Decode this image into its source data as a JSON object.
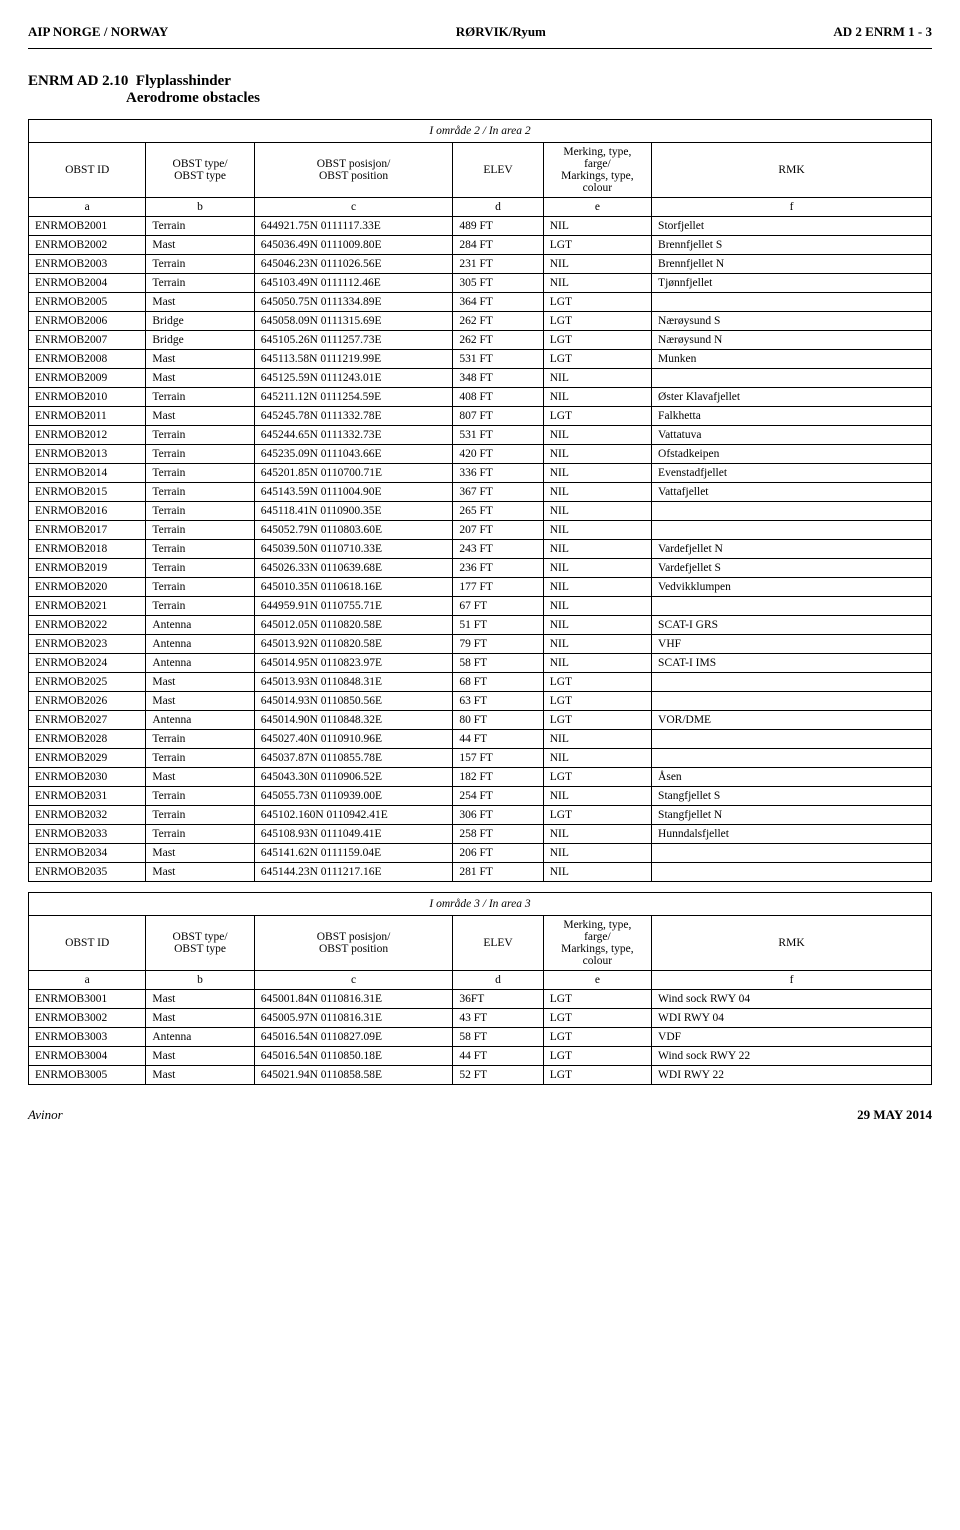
{
  "header": {
    "left": "AIP NORGE / NORWAY",
    "center": "RØRVIK/Ryum",
    "right": "AD 2 ENRM 1 - 3"
  },
  "section": {
    "code": "ENRM AD 2.10",
    "title_no": "Flyplasshinder",
    "title_en": "Aerodrome obstacles"
  },
  "columns": {
    "id": "OBST ID",
    "type1": "OBST type/",
    "type2": "OBST type",
    "pos1": "OBST posisjon/",
    "pos2": "OBST position",
    "elev": "ELEV",
    "mark1": "Merking, type, farge/",
    "mark2": "Markings, type, colour",
    "rmk": "RMK",
    "letters": [
      "a",
      "b",
      "c",
      "d",
      "e",
      "f"
    ]
  },
  "area2": {
    "caption": "I område 2 / In area 2",
    "rows": [
      {
        "id": "ENRMOB2001",
        "type": "Terrain",
        "pos": "644921.75N 0111117.33E",
        "elev": "489 FT",
        "mark": "NIL",
        "rmk": "Storfjellet"
      },
      {
        "id": "ENRMOB2002",
        "type": "Mast",
        "pos": "645036.49N 0111009.80E",
        "elev": "284 FT",
        "mark": "LGT",
        "rmk": "Brennfjellet S"
      },
      {
        "id": "ENRMOB2003",
        "type": "Terrain",
        "pos": "645046.23N 0111026.56E",
        "elev": "231 FT",
        "mark": "NIL",
        "rmk": "Brennfjellet N"
      },
      {
        "id": "ENRMOB2004",
        "type": "Terrain",
        "pos": "645103.49N 0111112.46E",
        "elev": "305 FT",
        "mark": "NIL",
        "rmk": "Tjønnfjellet"
      },
      {
        "id": "ENRMOB2005",
        "type": "Mast",
        "pos": "645050.75N 0111334.89E",
        "elev": "364 FT",
        "mark": "LGT",
        "rmk": ""
      },
      {
        "id": "ENRMOB2006",
        "type": "Bridge",
        "pos": "645058.09N 0111315.69E",
        "elev": "262 FT",
        "mark": "LGT",
        "rmk": "Nærøysund S"
      },
      {
        "id": "ENRMOB2007",
        "type": "Bridge",
        "pos": "645105.26N 0111257.73E",
        "elev": "262 FT",
        "mark": "LGT",
        "rmk": "Nærøysund N"
      },
      {
        "id": "ENRMOB2008",
        "type": "Mast",
        "pos": "645113.58N 0111219.99E",
        "elev": "531 FT",
        "mark": "LGT",
        "rmk": "Munken"
      },
      {
        "id": "ENRMOB2009",
        "type": "Mast",
        "pos": "645125.59N 0111243.01E",
        "elev": "348 FT",
        "mark": "NIL",
        "rmk": ""
      },
      {
        "id": "ENRMOB2010",
        "type": "Terrain",
        "pos": "645211.12N 0111254.59E",
        "elev": "408 FT",
        "mark": "NIL",
        "rmk": "Øster Klavafjellet"
      },
      {
        "id": "ENRMOB2011",
        "type": "Mast",
        "pos": "645245.78N 0111332.78E",
        "elev": "807 FT",
        "mark": "LGT",
        "rmk": "Falkhetta"
      },
      {
        "id": "ENRMOB2012",
        "type": "Terrain",
        "pos": "645244.65N 0111332.73E",
        "elev": "531 FT",
        "mark": "NIL",
        "rmk": "Vattatuva"
      },
      {
        "id": "ENRMOB2013",
        "type": "Terrain",
        "pos": "645235.09N 0111043.66E",
        "elev": "420 FT",
        "mark": "NIL",
        "rmk": "Ofstadkeipen"
      },
      {
        "id": "ENRMOB2014",
        "type": "Terrain",
        "pos": "645201.85N 0110700.71E",
        "elev": "336 FT",
        "mark": "NIL",
        "rmk": "Evenstadfjellet"
      },
      {
        "id": "ENRMOB2015",
        "type": "Terrain",
        "pos": "645143.59N 0111004.90E",
        "elev": "367 FT",
        "mark": "NIL",
        "rmk": "Vattafjellet"
      },
      {
        "id": "ENRMOB2016",
        "type": "Terrain",
        "pos": "645118.41N 0110900.35E",
        "elev": "265 FT",
        "mark": "NIL",
        "rmk": ""
      },
      {
        "id": "ENRMOB2017",
        "type": "Terrain",
        "pos": "645052.79N 0110803.60E",
        "elev": "207 FT",
        "mark": "NIL",
        "rmk": ""
      },
      {
        "id": "ENRMOB2018",
        "type": "Terrain",
        "pos": "645039.50N 0110710.33E",
        "elev": "243 FT",
        "mark": "NIL",
        "rmk": "Vardefjellet N"
      },
      {
        "id": "ENRMOB2019",
        "type": "Terrain",
        "pos": "645026.33N 0110639.68E",
        "elev": "236 FT",
        "mark": "NIL",
        "rmk": "Vardefjellet S"
      },
      {
        "id": "ENRMOB2020",
        "type": "Terrain",
        "pos": "645010.35N 0110618.16E",
        "elev": "177 FT",
        "mark": "NIL",
        "rmk": "Vedvikklumpen"
      },
      {
        "id": "ENRMOB2021",
        "type": "Terrain",
        "pos": "644959.91N 0110755.71E",
        "elev": "67 FT",
        "mark": "NIL",
        "rmk": ""
      },
      {
        "id": "ENRMOB2022",
        "type": "Antenna",
        "pos": "645012.05N 0110820.58E",
        "elev": "51 FT",
        "mark": "NIL",
        "rmk": "SCAT-I GRS"
      },
      {
        "id": "ENRMOB2023",
        "type": "Antenna",
        "pos": "645013.92N 0110820.58E",
        "elev": "79 FT",
        "mark": "NIL",
        "rmk": "VHF"
      },
      {
        "id": "ENRMOB2024",
        "type": "Antenna",
        "pos": "645014.95N 0110823.97E",
        "elev": "58 FT",
        "mark": "NIL",
        "rmk": "SCAT-I IMS"
      },
      {
        "id": "ENRMOB2025",
        "type": "Mast",
        "pos": "645013.93N 0110848.31E",
        "elev": "68 FT",
        "mark": "LGT",
        "rmk": ""
      },
      {
        "id": "ENRMOB2026",
        "type": "Mast",
        "pos": "645014.93N 0110850.56E",
        "elev": "63 FT",
        "mark": "LGT",
        "rmk": ""
      },
      {
        "id": "ENRMOB2027",
        "type": "Antenna",
        "pos": "645014.90N 0110848.32E",
        "elev": "80 FT",
        "mark": "LGT",
        "rmk": "VOR/DME"
      },
      {
        "id": "ENRMOB2028",
        "type": "Terrain",
        "pos": "645027.40N 0110910.96E",
        "elev": "44 FT",
        "mark": "NIL",
        "rmk": ""
      },
      {
        "id": "ENRMOB2029",
        "type": "Terrain",
        "pos": "645037.87N 0110855.78E",
        "elev": "157 FT",
        "mark": "NIL",
        "rmk": ""
      },
      {
        "id": "ENRMOB2030",
        "type": "Mast",
        "pos": "645043.30N 0110906.52E",
        "elev": "182 FT",
        "mark": "LGT",
        "rmk": "Åsen"
      },
      {
        "id": "ENRMOB2031",
        "type": "Terrain",
        "pos": "645055.73N 0110939.00E",
        "elev": "254 FT",
        "mark": "NIL",
        "rmk": "Stangfjellet S"
      },
      {
        "id": "ENRMOB2032",
        "type": "Terrain",
        "pos": "645102.160N 0110942.41E",
        "elev": "306 FT",
        "mark": "LGT",
        "rmk": "Stangfjellet N"
      },
      {
        "id": "ENRMOB2033",
        "type": "Terrain",
        "pos": "645108.93N 0111049.41E",
        "elev": "258 FT",
        "mark": "NIL",
        "rmk": "Hunndalsfjellet"
      },
      {
        "id": "ENRMOB2034",
        "type": "Mast",
        "pos": "645141.62N 0111159.04E",
        "elev": "206 FT",
        "mark": "NIL",
        "rmk": ""
      },
      {
        "id": "ENRMOB2035",
        "type": "Mast",
        "pos": "645144.23N 0111217.16E",
        "elev": "281 FT",
        "mark": "NIL",
        "rmk": ""
      }
    ]
  },
  "area3": {
    "caption": "I område 3 / In area 3",
    "rows": [
      {
        "id": "ENRMOB3001",
        "type": "Mast",
        "pos": "645001.84N 0110816.31E",
        "elev": "36FT",
        "mark": "LGT",
        "rmk": "Wind sock RWY 04"
      },
      {
        "id": "ENRMOB3002",
        "type": "Mast",
        "pos": "645005.97N 0110816.31E",
        "elev": "43 FT",
        "mark": "LGT",
        "rmk": "WDI RWY 04"
      },
      {
        "id": "ENRMOB3003",
        "type": "Antenna",
        "pos": "645016.54N 0110827.09E",
        "elev": "58 FT",
        "mark": "LGT",
        "rmk": "VDF"
      },
      {
        "id": "ENRMOB3004",
        "type": "Mast",
        "pos": "645016.54N 0110850.18E",
        "elev": "44 FT",
        "mark": "LGT",
        "rmk": "Wind sock RWY 22"
      },
      {
        "id": "ENRMOB3005",
        "type": "Mast",
        "pos": "645021.94N 0110858.58E",
        "elev": "52 FT",
        "mark": "LGT",
        "rmk": "WDI RWY 22"
      }
    ]
  },
  "footer": {
    "left": "Avinor",
    "right": "29 MAY 2014"
  }
}
